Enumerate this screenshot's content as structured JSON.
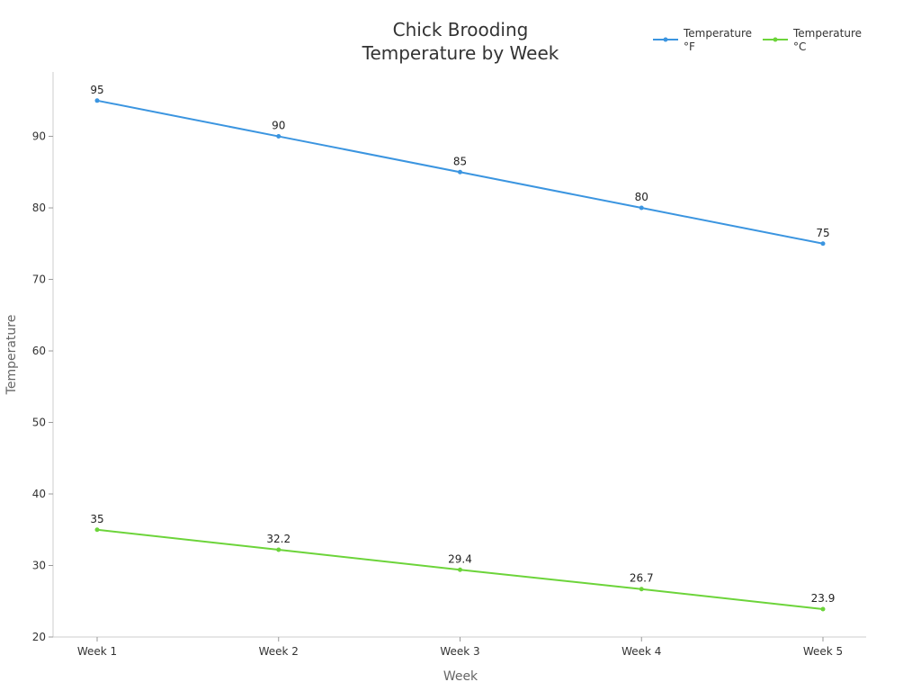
{
  "chart_data": {
    "type": "line",
    "title_lines": [
      "Chick Brooding",
      "Temperature by Week"
    ],
    "xlabel": "Week",
    "ylabel": "Temperature",
    "categories": [
      "Week 1",
      "Week 2",
      "Week 3",
      "Week 4",
      "Week 5"
    ],
    "ylim": [
      20,
      99
    ],
    "yticks": [
      20,
      30,
      40,
      50,
      60,
      70,
      80,
      90
    ],
    "grid": false,
    "legend_position": "top-right",
    "series": [
      {
        "legend_lines": [
          "Temperature",
          "°F"
        ],
        "color": "#3b95e0",
        "values": [
          95,
          90,
          85,
          80,
          75
        ],
        "labels": [
          "95",
          "90",
          "85",
          "80",
          "75"
        ]
      },
      {
        "legend_lines": [
          "Temperature",
          "°C"
        ],
        "color": "#6cd43a",
        "values": [
          35,
          32.2,
          29.4,
          26.7,
          23.9
        ],
        "labels": [
          "35",
          "32.2",
          "29.4",
          "26.7",
          "23.9"
        ]
      }
    ]
  }
}
